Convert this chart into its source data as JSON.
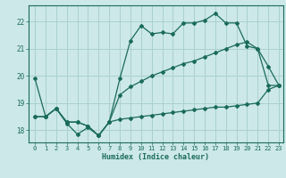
{
  "xlabel": "Humidex (Indice chaleur)",
  "bg_color": "#cce8e8",
  "grid_color": "#aad0d0",
  "line_color": "#1a6b5a",
  "xlim_min": -0.6,
  "xlim_max": 23.4,
  "ylim_min": 17.55,
  "ylim_max": 22.6,
  "xticks": [
    0,
    1,
    2,
    3,
    4,
    5,
    6,
    7,
    8,
    9,
    10,
    11,
    12,
    13,
    14,
    15,
    16,
    17,
    18,
    19,
    20,
    21,
    22,
    23
  ],
  "yticks": [
    18,
    19,
    20,
    21,
    22
  ],
  "x_data": [
    0,
    1,
    2,
    3,
    4,
    5,
    6,
    7,
    8,
    9,
    10,
    11,
    12,
    13,
    14,
    15,
    16,
    17,
    18,
    19,
    20,
    21,
    22,
    23
  ],
  "line_jagged_y": [
    19.9,
    18.5,
    18.8,
    18.25,
    17.85,
    18.1,
    17.8,
    18.3,
    19.9,
    21.3,
    21.85,
    21.55,
    21.6,
    21.55,
    21.95,
    21.95,
    22.05,
    22.3,
    21.95,
    21.95,
    21.1,
    21.0,
    20.35,
    19.65
  ],
  "line_upper_y": [
    18.5,
    18.5,
    18.8,
    18.3,
    18.3,
    18.15,
    17.8,
    18.3,
    19.3,
    19.6,
    19.8,
    20.0,
    20.15,
    20.3,
    20.45,
    20.55,
    20.7,
    20.85,
    21.0,
    21.15,
    21.25,
    21.0,
    19.65,
    19.65
  ],
  "line_lower_y": [
    18.5,
    18.5,
    18.8,
    18.3,
    18.3,
    18.15,
    17.8,
    18.3,
    18.4,
    18.45,
    18.5,
    18.55,
    18.6,
    18.65,
    18.7,
    18.75,
    18.8,
    18.85,
    18.85,
    18.9,
    18.95,
    19.0,
    19.5,
    19.65
  ]
}
